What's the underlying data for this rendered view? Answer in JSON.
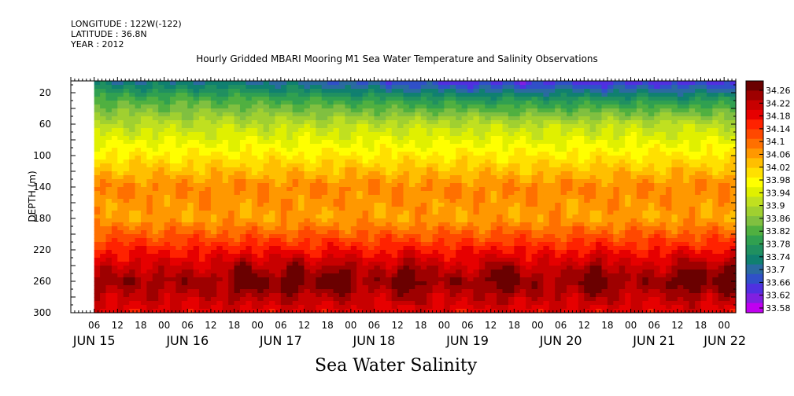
{
  "header": {
    "longitude": "LONGITUDE : 122W(-122)",
    "latitude": "LATITUDE : 36.8N",
    "year": "YEAR : 2012"
  },
  "title": "Hourly Gridded MBARI Mooring M1 Sea Water Temperature and Salinity Observations",
  "footer_title": "Sea Water Salinity",
  "chart_data": {
    "type": "heatmap",
    "title": "Hourly Gridded MBARI Mooring M1 Sea Water Temperature and Salinity Observations",
    "variable": "Sea Water Salinity",
    "ylabel": "DEPTH (m)",
    "xlabel": "",
    "ylim": [
      300,
      5
    ],
    "y_ticks": [
      20,
      60,
      100,
      140,
      180,
      220,
      260,
      300
    ],
    "x_hour_ticks": [
      "06",
      "12",
      "18",
      "00",
      "06",
      "12",
      "18",
      "00",
      "06",
      "12",
      "18",
      "00",
      "06",
      "12",
      "18",
      "00",
      "06",
      "12",
      "18",
      "00",
      "06",
      "12",
      "18",
      "00",
      "06",
      "12",
      "18",
      "00"
    ],
    "x_day_labels": [
      "JUN 15",
      "JUN 16",
      "JUN 17",
      "JUN 18",
      "JUN 19",
      "JUN 20",
      "JUN 21",
      "JUN 22"
    ],
    "x_range_hours": [
      0,
      171
    ],
    "data_start_hour": 6,
    "colorbar": {
      "levels": [
        "34.26",
        "34.22",
        "34.18",
        "34.14",
        "34.1",
        "34.06",
        "34.02",
        "33.98",
        "33.94",
        "33.9",
        "33.86",
        "33.82",
        "33.78",
        "33.74",
        "33.7",
        "33.66",
        "33.62",
        "33.58"
      ],
      "colors": [
        "#6a0000",
        "#9e0000",
        "#c80000",
        "#e60000",
        "#ff2200",
        "#ff4800",
        "#ff7000",
        "#ff9800",
        "#ffbf00",
        "#ffe000",
        "#ffff00",
        "#e0f000",
        "#c0e020",
        "#a0d030",
        "#80c040",
        "#50b040",
        "#30a050",
        "#209060",
        "#108070",
        "#2a6aa0",
        "#3050c8",
        "#5030e0",
        "#8020e0",
        "#c000f0"
      ]
    },
    "depth_profile": [
      {
        "depth": 10,
        "salinity": 33.74
      },
      {
        "depth": 30,
        "salinity": 33.82
      },
      {
        "depth": 60,
        "salinity": 33.9
      },
      {
        "depth": 100,
        "salinity": 33.98
      },
      {
        "depth": 140,
        "salinity": 34.06
      },
      {
        "depth": 180,
        "salinity": 34.04
      },
      {
        "depth": 220,
        "salinity": 34.14
      },
      {
        "depth": 260,
        "salinity": 34.22
      },
      {
        "depth": 300,
        "salinity": 34.16
      }
    ],
    "salinity_maxima_hours": [
      45,
      57,
      69,
      87,
      111,
      135,
      159,
      169
    ]
  }
}
